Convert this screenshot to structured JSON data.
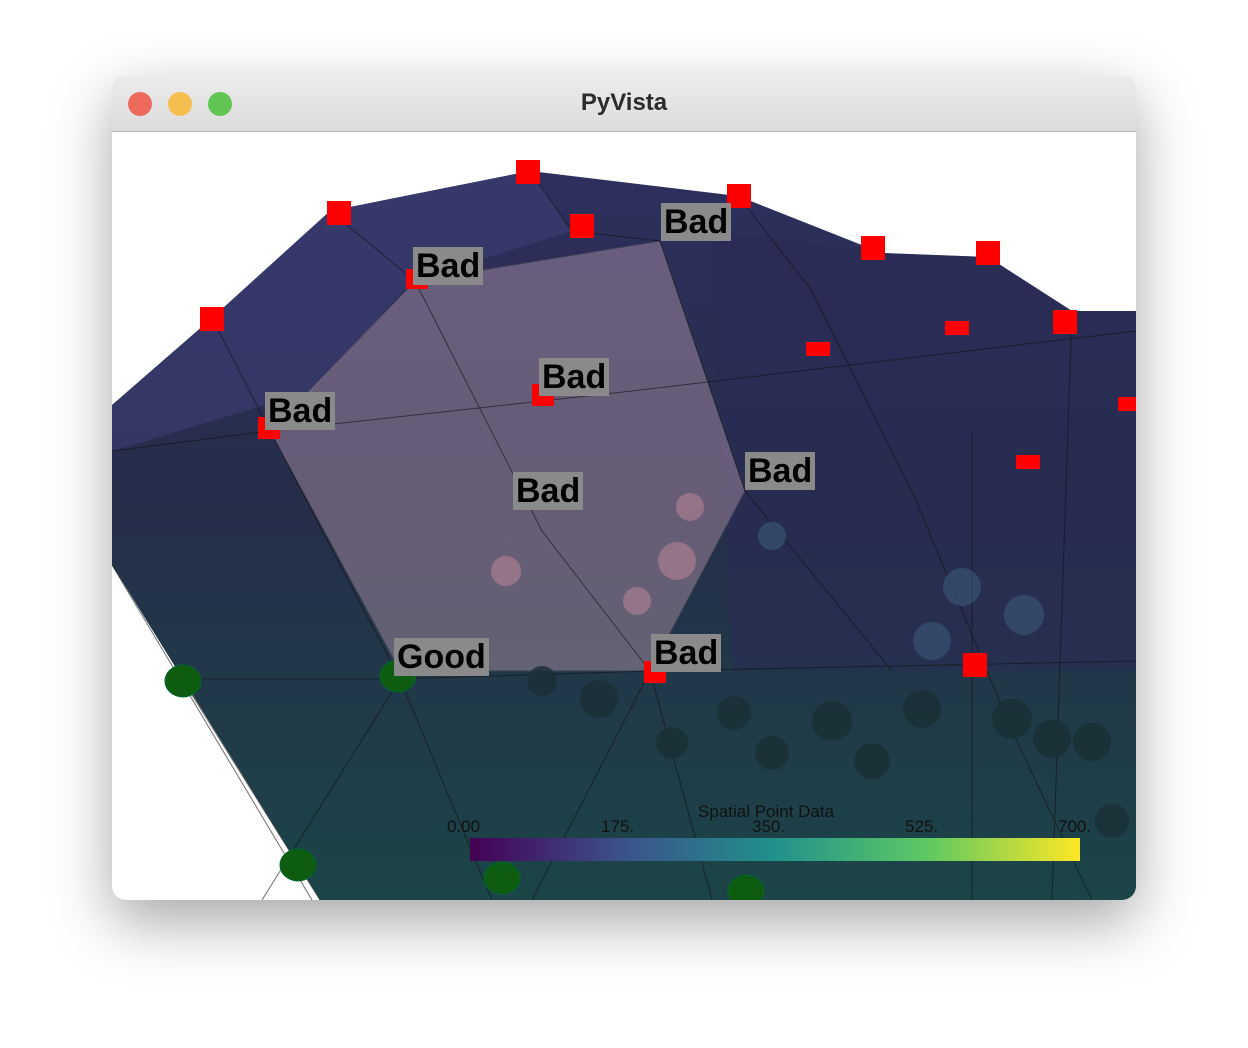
{
  "window": {
    "title": "PyVista"
  },
  "labels": [
    "Bad",
    "Bad",
    "Bad",
    "Bad",
    "Bad",
    "Bad",
    "Bad",
    "Good"
  ],
  "scalar_bar": {
    "title": "Spatial Point Data",
    "ticks": [
      "0.00",
      "175.",
      "350.",
      "525.",
      "700."
    ]
  }
}
